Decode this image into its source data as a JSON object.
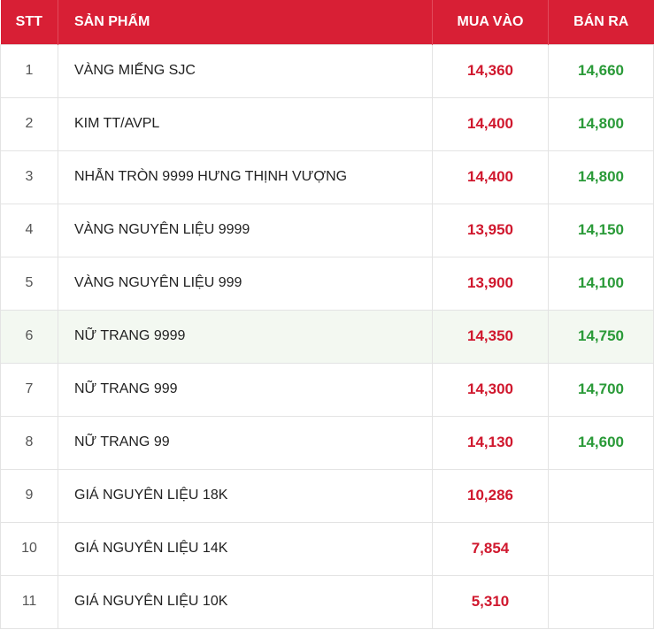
{
  "table": {
    "headers": {
      "stt": "STT",
      "product": "SẢN PHẨM",
      "buy": "MUA VÀO",
      "sell": "BÁN RA"
    },
    "rows": [
      {
        "stt": "1",
        "product": "VÀNG MIẾNG SJC",
        "buy": "14,360",
        "sell": "14,660"
      },
      {
        "stt": "2",
        "product": "KIM TT/AVPL",
        "buy": "14,400",
        "sell": "14,800"
      },
      {
        "stt": "3",
        "product": "NHẪN TRÒN 9999 HƯNG THỊNH VƯỢNG",
        "buy": "14,400",
        "sell": "14,800"
      },
      {
        "stt": "4",
        "product": "VÀNG NGUYÊN LIỆU 9999",
        "buy": "13,950",
        "sell": "14,150"
      },
      {
        "stt": "5",
        "product": "VÀNG NGUYÊN LIỆU 999",
        "buy": "13,900",
        "sell": "14,100"
      },
      {
        "stt": "6",
        "product": "NỮ TRANG 9999",
        "buy": "14,350",
        "sell": "14,750"
      },
      {
        "stt": "7",
        "product": "NỮ TRANG 999",
        "buy": "14,300",
        "sell": "14,700"
      },
      {
        "stt": "8",
        "product": "NỮ TRANG 99",
        "buy": "14,130",
        "sell": "14,600"
      },
      {
        "stt": "9",
        "product": "GIÁ NGUYÊN LIỆU 18K",
        "buy": "10,286",
        "sell": ""
      },
      {
        "stt": "10",
        "product": "GIÁ NGUYÊN LIỆU 14K",
        "buy": "7,854",
        "sell": ""
      },
      {
        "stt": "11",
        "product": "GIÁ NGUYÊN LIỆU 10K",
        "buy": "5,310",
        "sell": ""
      }
    ]
  },
  "colors": {
    "header_background": "#d81f35",
    "buy_price": "#d0182e",
    "sell_price": "#2a9a38",
    "highlight_row": "#f3f8f1"
  }
}
